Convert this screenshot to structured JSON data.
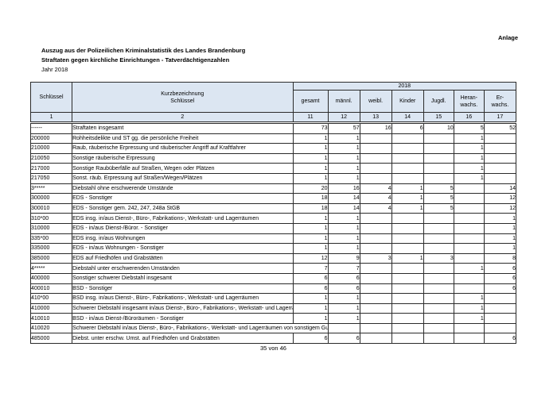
{
  "page": {
    "anlage": "Anlage",
    "title_line1": "Auszug aus der Polizeilichen Kriminalstatistik des Landes Brandenburg",
    "title_line2": "Straftaten gegen kirchliche Einrichtungen - Tatverdächtigenzahlen",
    "title_line3": "Jahr 2018",
    "footer": "35 von 46"
  },
  "table": {
    "header": {
      "col1": "Schlüssel",
      "col2": "Kurzbezeichnung\nSchlüssel",
      "year": "2018",
      "value_cols": [
        "gesamt",
        "männl.",
        "weibl.",
        "Kinder",
        "Jugdl.",
        "Heran-\nwachs.",
        "Er-\nwachs."
      ],
      "numbering": [
        "1",
        "2",
        "11",
        "12",
        "13",
        "14",
        "15",
        "16",
        "17"
      ]
    },
    "rows": [
      {
        "key": "------",
        "label": "Straftaten insgesamt",
        "values": [
          "73",
          "57",
          "16",
          "6",
          "10",
          "5",
          "52"
        ]
      },
      {
        "key": "200000",
        "label": "Rohheitsdelikte und ST gg. die persönliche Freiheit",
        "values": [
          "1",
          "1",
          "",
          "",
          "",
          "1",
          ""
        ]
      },
      {
        "key": "210000",
        "label": "Raub, räuberische Erpressung und räuberischer Angriff auf Kraftfahrer",
        "values": [
          "1",
          "1",
          "",
          "",
          "",
          "1",
          ""
        ]
      },
      {
        "key": "210050",
        "label": "Sonstige räuberische Erpressung",
        "values": [
          "1",
          "1",
          "",
          "",
          "",
          "1",
          ""
        ]
      },
      {
        "key": "217000",
        "label": "Sonstige Raubüberfälle auf Straßen, Wegen oder Plätzen",
        "values": [
          "1",
          "1",
          "",
          "",
          "",
          "1",
          ""
        ]
      },
      {
        "key": "217050",
        "label": "Sonst. räub. Erpressung auf Straßen/Wegen/Plätzen",
        "values": [
          "1",
          "1",
          "",
          "",
          "",
          "1",
          ""
        ]
      },
      {
        "key": "3*****",
        "label": "Diebstahl ohne erschwerende Umstände",
        "values": [
          "20",
          "16",
          "4",
          "1",
          "5",
          "",
          "14"
        ]
      },
      {
        "key": "300000",
        "label": "EDS - Sonstiger",
        "values": [
          "18",
          "14",
          "4",
          "1",
          "5",
          "",
          "12"
        ]
      },
      {
        "key": "300010",
        "label": "EDS - Sonstiger gem. 242, 247, 248a StGB",
        "values": [
          "18",
          "14",
          "4",
          "1",
          "5",
          "",
          "12"
        ]
      },
      {
        "key": "310*00",
        "label": "EDS insg. in/aus Dienst-, Büro-, Fabrikations-, Werkstatt- und Lagerräumen",
        "values": [
          "1",
          "1",
          "",
          "",
          "",
          "",
          "1"
        ]
      },
      {
        "key": "310000",
        "label": "EDS - in/aus Dienst-/Büror. - Sonstiger",
        "values": [
          "1",
          "1",
          "",
          "",
          "",
          "",
          "1"
        ]
      },
      {
        "key": "335*00",
        "label": "EDS insg. in/aus Wohnungen",
        "values": [
          "1",
          "1",
          "",
          "",
          "",
          "",
          "1"
        ]
      },
      {
        "key": "335000",
        "label": "EDS - in/aus Wohnungen - Sonstiger",
        "values": [
          "1",
          "1",
          "",
          "",
          "",
          "",
          "1"
        ]
      },
      {
        "key": "385000",
        "label": "EDS auf Friedhöfen und Grabstätten",
        "values": [
          "12",
          "9",
          "3",
          "1",
          "3",
          "",
          "8"
        ]
      },
      {
        "key": "4*****",
        "label": "Diebstahl unter erschwerenden Umständen",
        "values": [
          "7",
          "7",
          "",
          "",
          "",
          "1",
          "6"
        ]
      },
      {
        "key": "400000",
        "label": "Sonstiger schwerer Diebstahl insgesamt",
        "values": [
          "6",
          "6",
          "",
          "",
          "",
          "",
          "6"
        ]
      },
      {
        "key": "400010",
        "label": "BSD - Sonstiger",
        "values": [
          "6",
          "6",
          "",
          "",
          "",
          "",
          "6"
        ]
      },
      {
        "key": "410*00",
        "label": "BSD insg. in/aus Dienst-, Büro-, Fabrikations-, Werkstatt- und Lagerräumen",
        "values": [
          "1",
          "1",
          "",
          "",
          "",
          "1",
          ""
        ]
      },
      {
        "key": "410000",
        "label": "Schwerer Diebstahl insgesamt in/aus Dienst-, Büro-, Fabrikations-, Werkstatt- und Lagerräume",
        "values": [
          "1",
          "1",
          "",
          "",
          "",
          "1",
          ""
        ]
      },
      {
        "key": "410010",
        "label": "BSD - in/aus Dienst-/Büroräumen - Sonstiger",
        "values": [
          "1",
          "1",
          "",
          "",
          "",
          "1",
          ""
        ]
      },
      {
        "key": "410020",
        "label": "Schwerer Diebstahl in/aus Dienst-, Büro-, Fabrikations-, Werkstatt- und Lagerräumen von sonstigem Gut",
        "label_spans_gesamt": true,
        "values": [
          "",
          "",
          "",
          "",
          "",
          "",
          ""
        ]
      },
      {
        "key": "485000",
        "label": "Diebst. unter erschw. Umst. auf Friedhöfen und Grabstätten",
        "values": [
          "6",
          "6",
          "",
          "",
          "",
          "",
          "6"
        ]
      }
    ]
  }
}
